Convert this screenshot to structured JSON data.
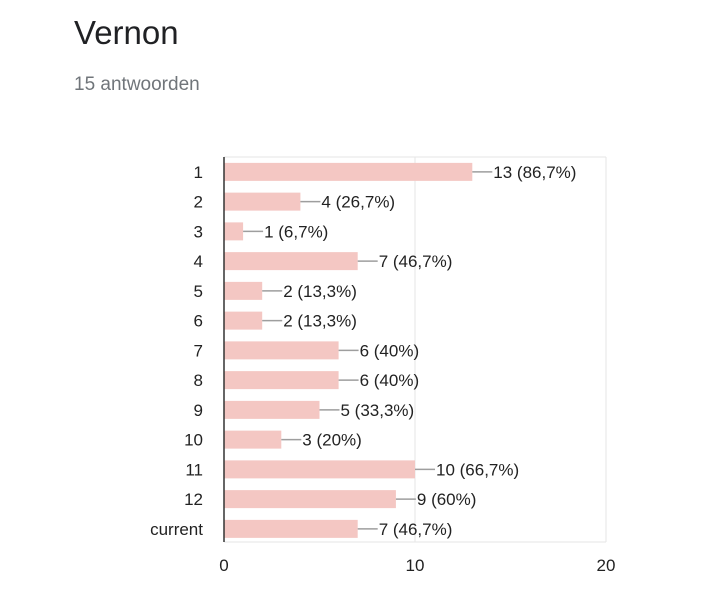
{
  "question": {
    "title": "Vernon",
    "responses": "15 antwoorden"
  },
  "chart_data": {
    "type": "bar",
    "orientation": "horizontal",
    "categories": [
      "1",
      "2",
      "3",
      "4",
      "5",
      "6",
      "7",
      "8",
      "9",
      "10",
      "11",
      "12",
      "current"
    ],
    "values": [
      13,
      4,
      1,
      7,
      2,
      2,
      6,
      6,
      5,
      3,
      10,
      9,
      7
    ],
    "data_labels": [
      "13 (86,7%)",
      "4 (26,7%)",
      "1 (6,7%)",
      "7 (46,7%)",
      "2 (13,3%)",
      "2 (13,3%)",
      "6 (40%)",
      "6 (40%)",
      "5 (33,3%)",
      "3 (20%)",
      "10 (66,7%)",
      "9 (60%)",
      "7 (46,7%)"
    ],
    "x_ticks": [
      "0",
      "10",
      "20"
    ],
    "xlim": [
      0,
      20
    ],
    "grid": true,
    "bar_color": "#f4c7c3"
  }
}
